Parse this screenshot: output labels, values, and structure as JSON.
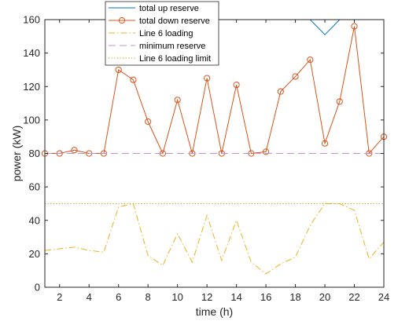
{
  "chart_data": {
    "type": "line",
    "title": "",
    "xlabel": "time (h)",
    "ylabel": "power (kW)",
    "xlim": [
      1,
      24
    ],
    "ylim": [
      0,
      160
    ],
    "x_ticks": [
      2,
      4,
      6,
      8,
      10,
      12,
      14,
      16,
      18,
      20,
      22,
      24
    ],
    "x_tick_labels": [
      "2",
      "4",
      "6",
      "8",
      "10",
      "12",
      "14",
      "16",
      "18",
      "20",
      "22",
      "24"
    ],
    "y_ticks": [
      0,
      20,
      40,
      60,
      80,
      100,
      120,
      140,
      160
    ],
    "y_tick_labels": [
      "0",
      "20",
      "40",
      "60",
      "80",
      "100",
      "120",
      "140",
      "160"
    ],
    "grid": false,
    "legend_position": "top-center",
    "x": [
      1,
      2,
      3,
      4,
      5,
      6,
      7,
      8,
      9,
      10,
      11,
      12,
      13,
      14,
      15,
      16,
      17,
      18,
      19,
      20,
      21,
      22,
      23,
      24
    ],
    "series": [
      {
        "name": "total up reserve",
        "color": "#0072bd",
        "style": "solid",
        "marker": "none",
        "values": [
          160,
          160,
          160,
          160,
          160,
          160,
          160,
          160,
          160,
          160,
          160,
          160,
          160,
          160,
          160,
          160,
          160,
          160,
          160,
          151,
          160,
          160,
          160,
          160
        ]
      },
      {
        "name": "total down reserve",
        "color": "#d95319",
        "style": "solid",
        "marker": "circle",
        "values": [
          80,
          80,
          82,
          80,
          80,
          130,
          124,
          99,
          80,
          112,
          80,
          125,
          80,
          121,
          80,
          81,
          117,
          126,
          136,
          86,
          111,
          156,
          80,
          90
        ]
      },
      {
        "name": "Line 6 loading",
        "color": "#edb120",
        "style": "dashdot",
        "marker": "none",
        "values": [
          22,
          23,
          24,
          22,
          21,
          48,
          50,
          19,
          13,
          32,
          15,
          43,
          16,
          40,
          15,
          8,
          14,
          18,
          37,
          50,
          50,
          46,
          17,
          27
        ]
      },
      {
        "name": "minimum reserve",
        "color": "#c98fd0",
        "style": "dashed",
        "marker": "none",
        "values": [
          80,
          80,
          80,
          80,
          80,
          80,
          80,
          80,
          80,
          80,
          80,
          80,
          80,
          80,
          80,
          80,
          80,
          80,
          80,
          80,
          80,
          80,
          80,
          80
        ]
      },
      {
        "name": "Line 6 loading limit",
        "color": "#b8a200",
        "style": "dotted",
        "marker": "none",
        "values": [
          50,
          50,
          50,
          50,
          50,
          50,
          50,
          50,
          50,
          50,
          50,
          50,
          50,
          50,
          50,
          50,
          50,
          50,
          50,
          50,
          50,
          50,
          50,
          50
        ]
      }
    ]
  }
}
